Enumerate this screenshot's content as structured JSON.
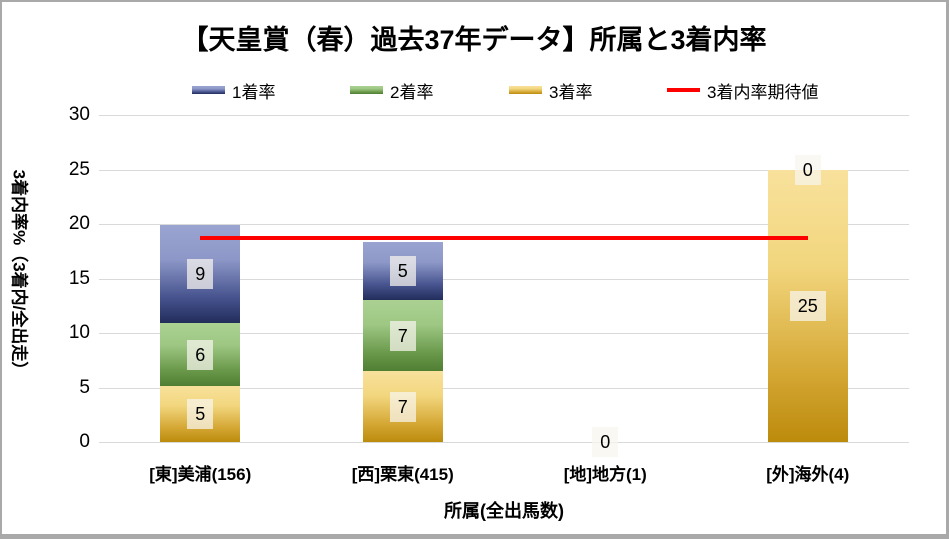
{
  "title": "【天皇賞（春）過去37年データ】所属と3着内率",
  "axes": {
    "y_title": "3着内率%（3着内/全出走）",
    "x_title": "所属(全出馬数)",
    "y_ticks": [
      0,
      5,
      10,
      15,
      20,
      25,
      30
    ],
    "y_max": 30
  },
  "legend": [
    {
      "label": "1着率",
      "type": "bar",
      "series": "1着率"
    },
    {
      "label": "2着率",
      "type": "bar",
      "series": "2着率"
    },
    {
      "label": "3着率",
      "type": "bar",
      "series": "3着率"
    },
    {
      "label": "3着内率期待値",
      "type": "line",
      "series": "期待値"
    }
  ],
  "colors": {
    "1着率": [
      "#9aa4d1",
      "#8d98c8",
      "#46538e",
      "#222d5b"
    ],
    "2着率": [
      "#abd192",
      "#9dc783",
      "#6b9a4c",
      "#507e32"
    ],
    "3着率": [
      "#f8e19c",
      "#f2d67e",
      "#d5a835",
      "#bc8b0c"
    ],
    "expected_line": "#ff0000",
    "gridline": "#d9d9d9",
    "label_box": "rgba(248,245,239,0.72)"
  },
  "chart_data": {
    "type": "bar",
    "subtype": "stacked-bar-with-line",
    "title": "【天皇賞（春）過去37年データ】所属と3着内率",
    "xlabel": "所属(全出馬数)",
    "ylabel": "3着内率%（3着内/全出走）",
    "ylim": [
      0,
      30
    ],
    "ytick_step": 5,
    "grid": true,
    "legend_position": "top",
    "categories": [
      "[東]美浦(156)",
      "[西]栗東(415)",
      "[地]地方(1)",
      "[外]海外(4)"
    ],
    "stack_order_bottom_to_top": [
      "3着率",
      "2着率",
      "1着率"
    ],
    "series": [
      {
        "name": "3着率",
        "values": [
          5.13,
          6.51,
          0,
          25.0
        ],
        "data_labels": [
          "5",
          "7",
          "",
          "25"
        ]
      },
      {
        "name": "2着率",
        "values": [
          5.77,
          6.51,
          0,
          0
        ],
        "data_labels": [
          "6",
          "7",
          "",
          ""
        ]
      },
      {
        "name": "1着率",
        "values": [
          8.97,
          5.3,
          0,
          0
        ],
        "data_labels": [
          "9",
          "5",
          "",
          ""
        ]
      }
    ],
    "zero_value_labels": [
      {
        "category_index": 2,
        "text": "0",
        "at_value": 0
      },
      {
        "category_index": 3,
        "text": "0",
        "at_value": 25
      }
    ],
    "line_series": {
      "name": "3着内率期待値",
      "value": 18.7,
      "from_category_index": 0,
      "to_category_index": 3
    }
  }
}
